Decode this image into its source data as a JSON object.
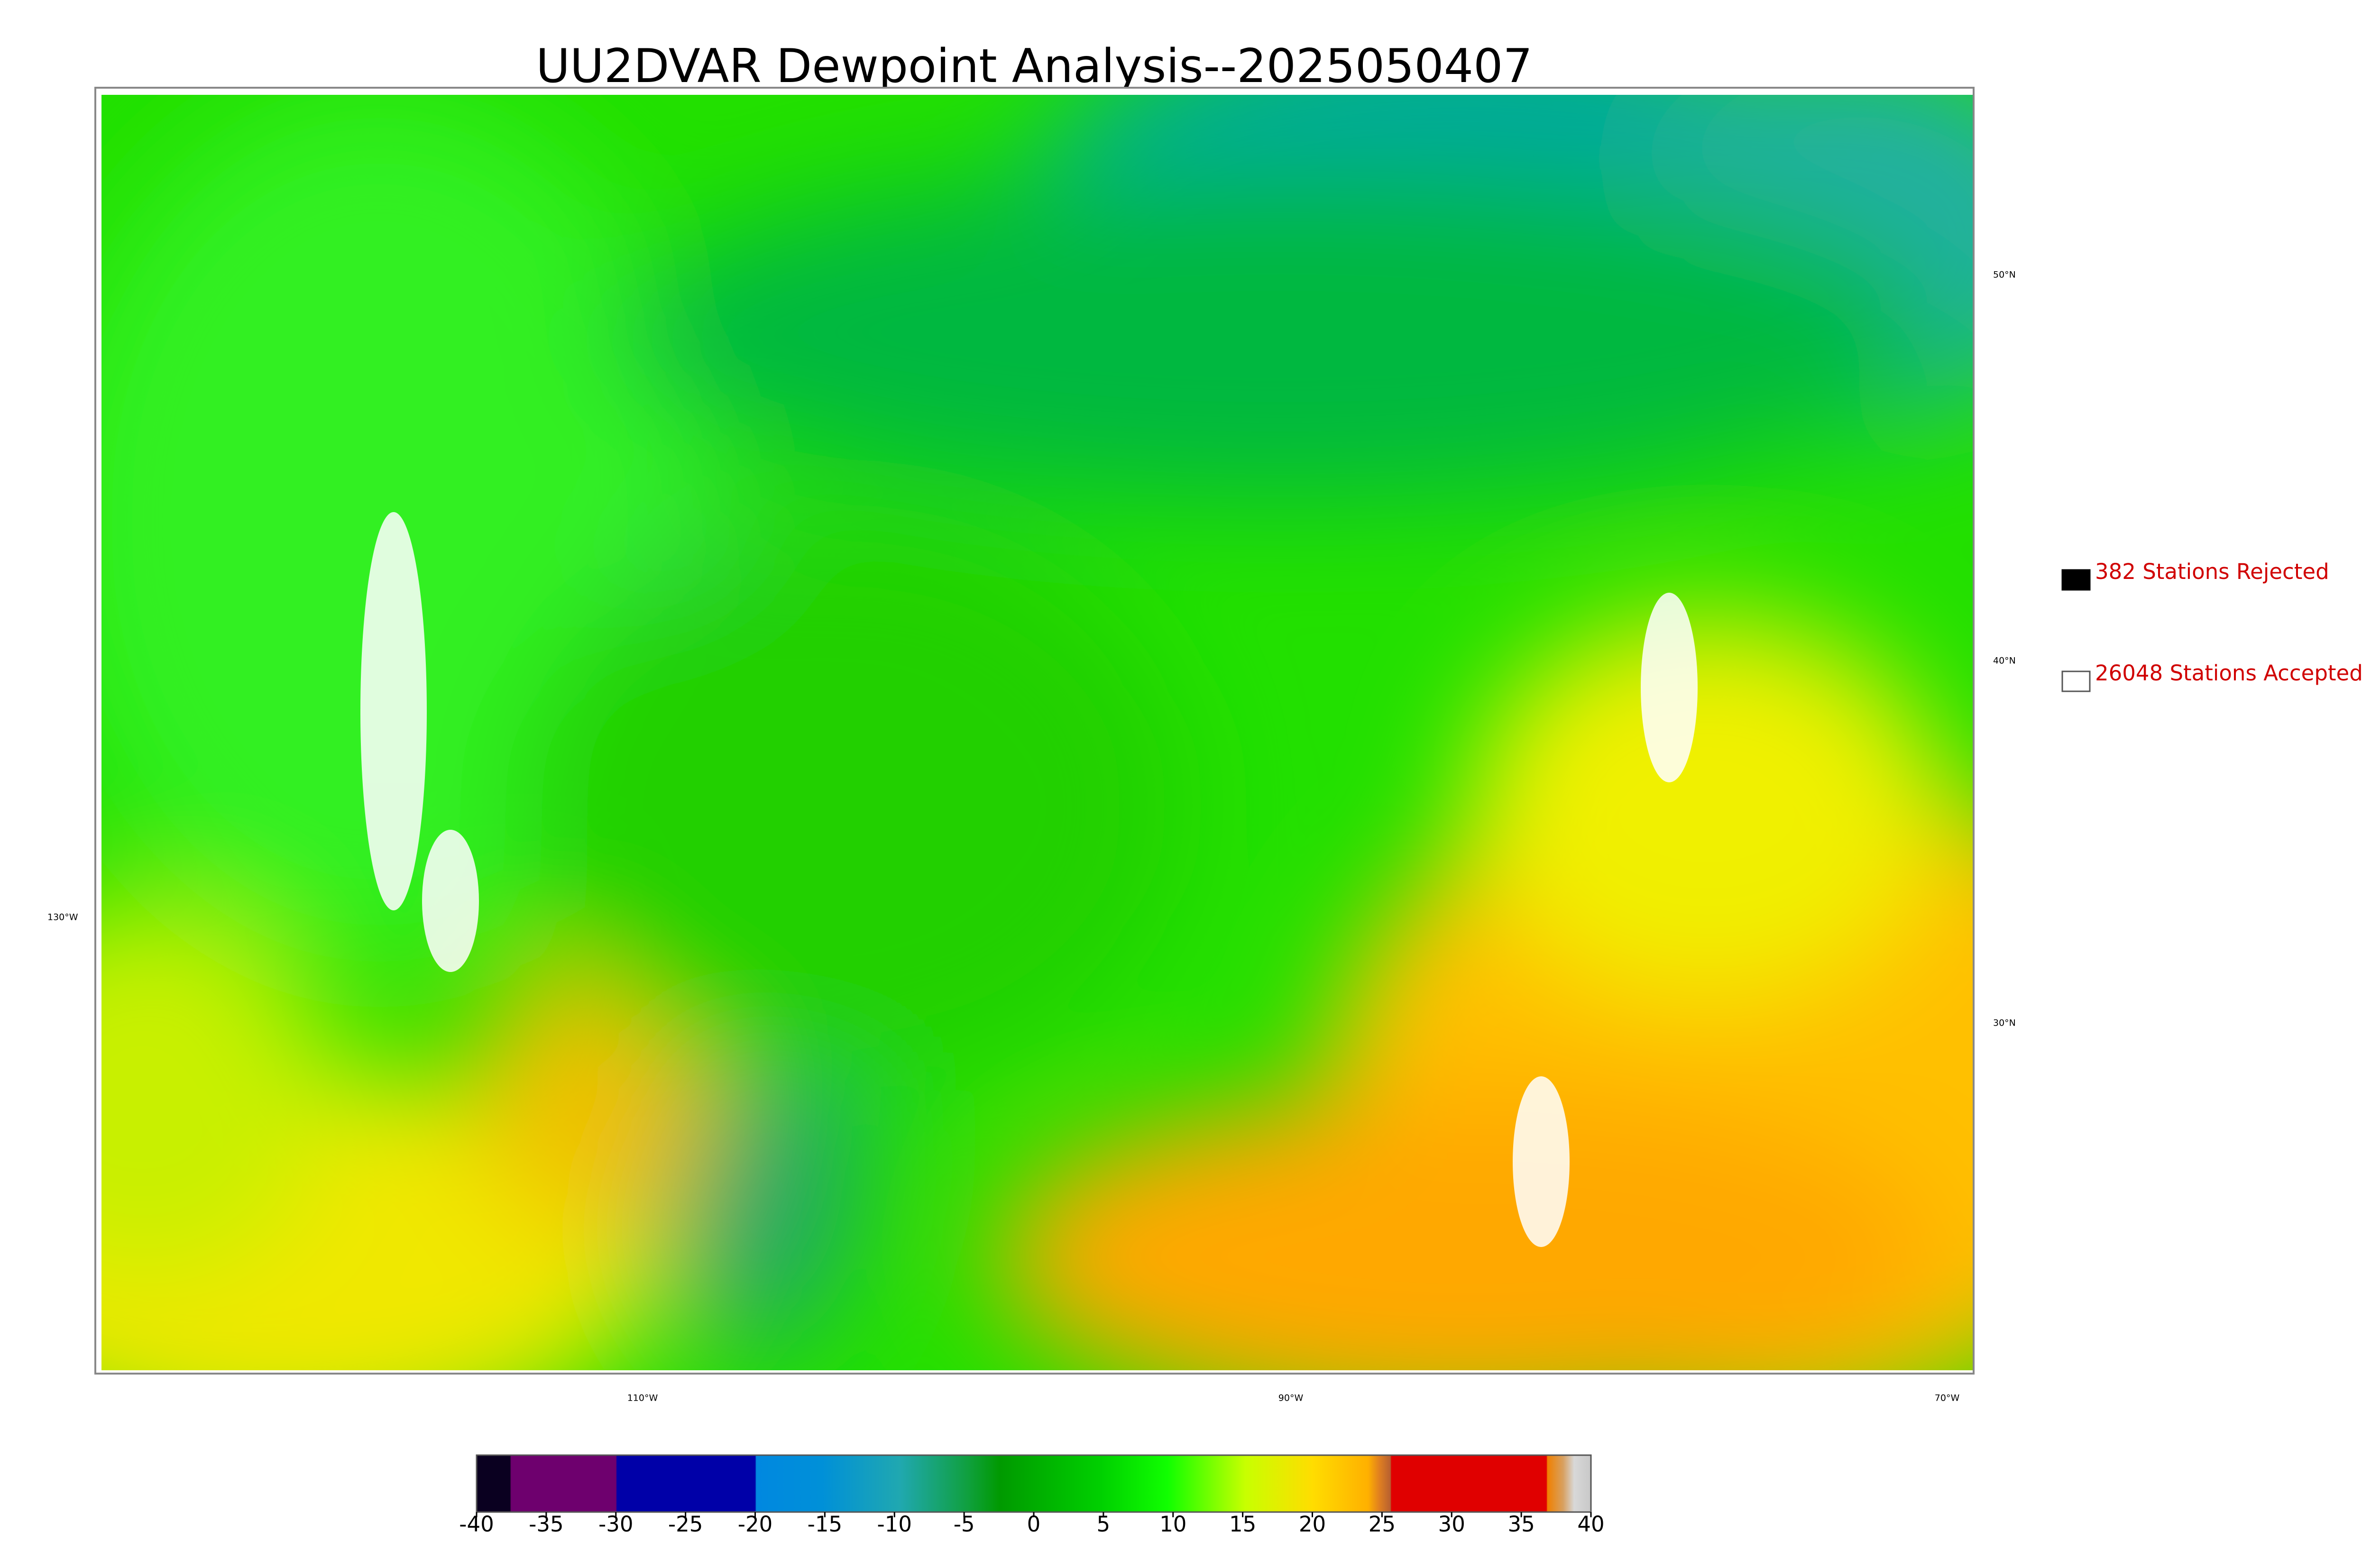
{
  "title": "UU2DVAR Dewpoint Analysis--2025050407",
  "legend": [
    "382 Stations Rejected",
    "26048 Stations Accepted"
  ],
  "graticule": {
    "lat_labels": [
      "50°N",
      "40°N",
      "30°N"
    ],
    "lon_labels": [
      "130°W",
      "110°W",
      "90°W",
      "70°W"
    ]
  },
  "colorbar": {
    "lim": [
      -40,
      40
    ],
    "ticks": [
      -40,
      -35,
      -30,
      -25,
      -20,
      -15,
      -10,
      -5,
      0,
      5,
      10,
      15,
      20,
      25,
      30,
      35,
      40
    ]
  }
}
